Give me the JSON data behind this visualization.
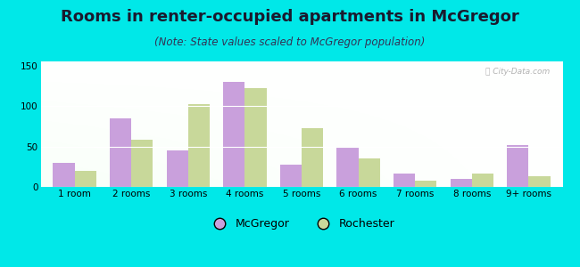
{
  "categories": [
    "1 room",
    "2 rooms",
    "3 rooms",
    "4 rooms",
    "5 rooms",
    "6 rooms",
    "7 rooms",
    "8 rooms",
    "9+ rooms"
  ],
  "mcgregor": [
    30,
    85,
    45,
    130,
    28,
    50,
    17,
    10,
    52
  ],
  "rochester": [
    20,
    58,
    102,
    122,
    73,
    35,
    8,
    17,
    13
  ],
  "mcgregor_color": "#c9a0dc",
  "rochester_color": "#c8d89a",
  "title": "Rooms in renter-occupied apartments in McGregor",
  "subtitle": "(Note: State values scaled to McGregor population)",
  "ylim": [
    0,
    155
  ],
  "yticks": [
    0,
    50,
    100,
    150
  ],
  "legend_mcgregor": "McGregor",
  "legend_rochester": "Rochester",
  "bg_outer": "#00e8e8",
  "bar_width": 0.38,
  "title_fontsize": 13,
  "subtitle_fontsize": 8.5,
  "tick_fontsize": 7.5,
  "legend_fontsize": 9
}
